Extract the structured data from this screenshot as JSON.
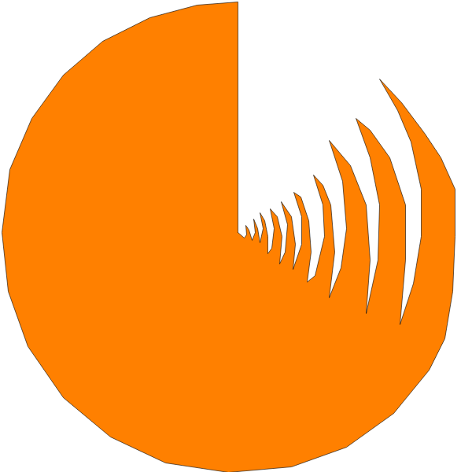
{
  "chart_data": {
    "type": "polygon",
    "color": "#ff8000",
    "tick_labels": false,
    "xlim": [
      -302,
      298
    ],
    "ylim": [
      -305,
      295
    ],
    "x": [
      0,
      0,
      -52,
      -112,
      -172,
      -222,
      -262,
      -290,
      -300,
      -292,
      -267,
      -222,
      -162,
      -92,
      -12,
      68,
      138,
      198,
      243,
      263,
      273,
      276,
      276,
      258,
      238,
      208,
      180,
      203,
      220,
      233,
      233,
      223,
      206,
      213,
      213,
      193,
      168,
      150,
      168,
      180,
      178,
      163,
      168,
      163,
      143,
      116,
      133,
      138,
      131,
      116,
      123,
      118,
      108,
      96,
      108,
      110,
      98,
      88,
      93,
      90,
      80,
      71,
      81,
      81,
      70,
      73,
      68,
      55,
      63,
      60,
      53,
      56,
      50,
      41,
      46,
      43,
      38,
      38,
      34,
      28,
      32,
      28,
      25,
      20,
      22,
      18,
      14,
      10,
      11,
      8,
      0
    ],
    "values": [
      0,
      293,
      289,
      273,
      243,
      200,
      145,
      80,
      0,
      -75,
      -145,
      -210,
      -260,
      -293,
      -305,
      -298,
      -273,
      -230,
      -175,
      -135,
      -75,
      -5,
      55,
      95,
      125,
      165,
      195,
      155,
      115,
      55,
      -5,
      -65,
      -117,
      -35,
      35,
      95,
      130,
      145,
      95,
      35,
      -35,
      -103,
      -35,
      35,
      85,
      117,
      65,
      5,
      -45,
      -83,
      -25,
      35,
      60,
      73,
      35,
      -5,
      -55,
      -63,
      -25,
      15,
      45,
      51,
      20,
      -15,
      -47,
      -15,
      20,
      39,
      10,
      -25,
      -40,
      -5,
      20,
      30,
      5,
      -20,
      -27,
      -5,
      15,
      25,
      5,
      -13,
      5,
      17,
      0,
      -10,
      3,
      9,
      -3,
      -7,
      0
    ]
  }
}
